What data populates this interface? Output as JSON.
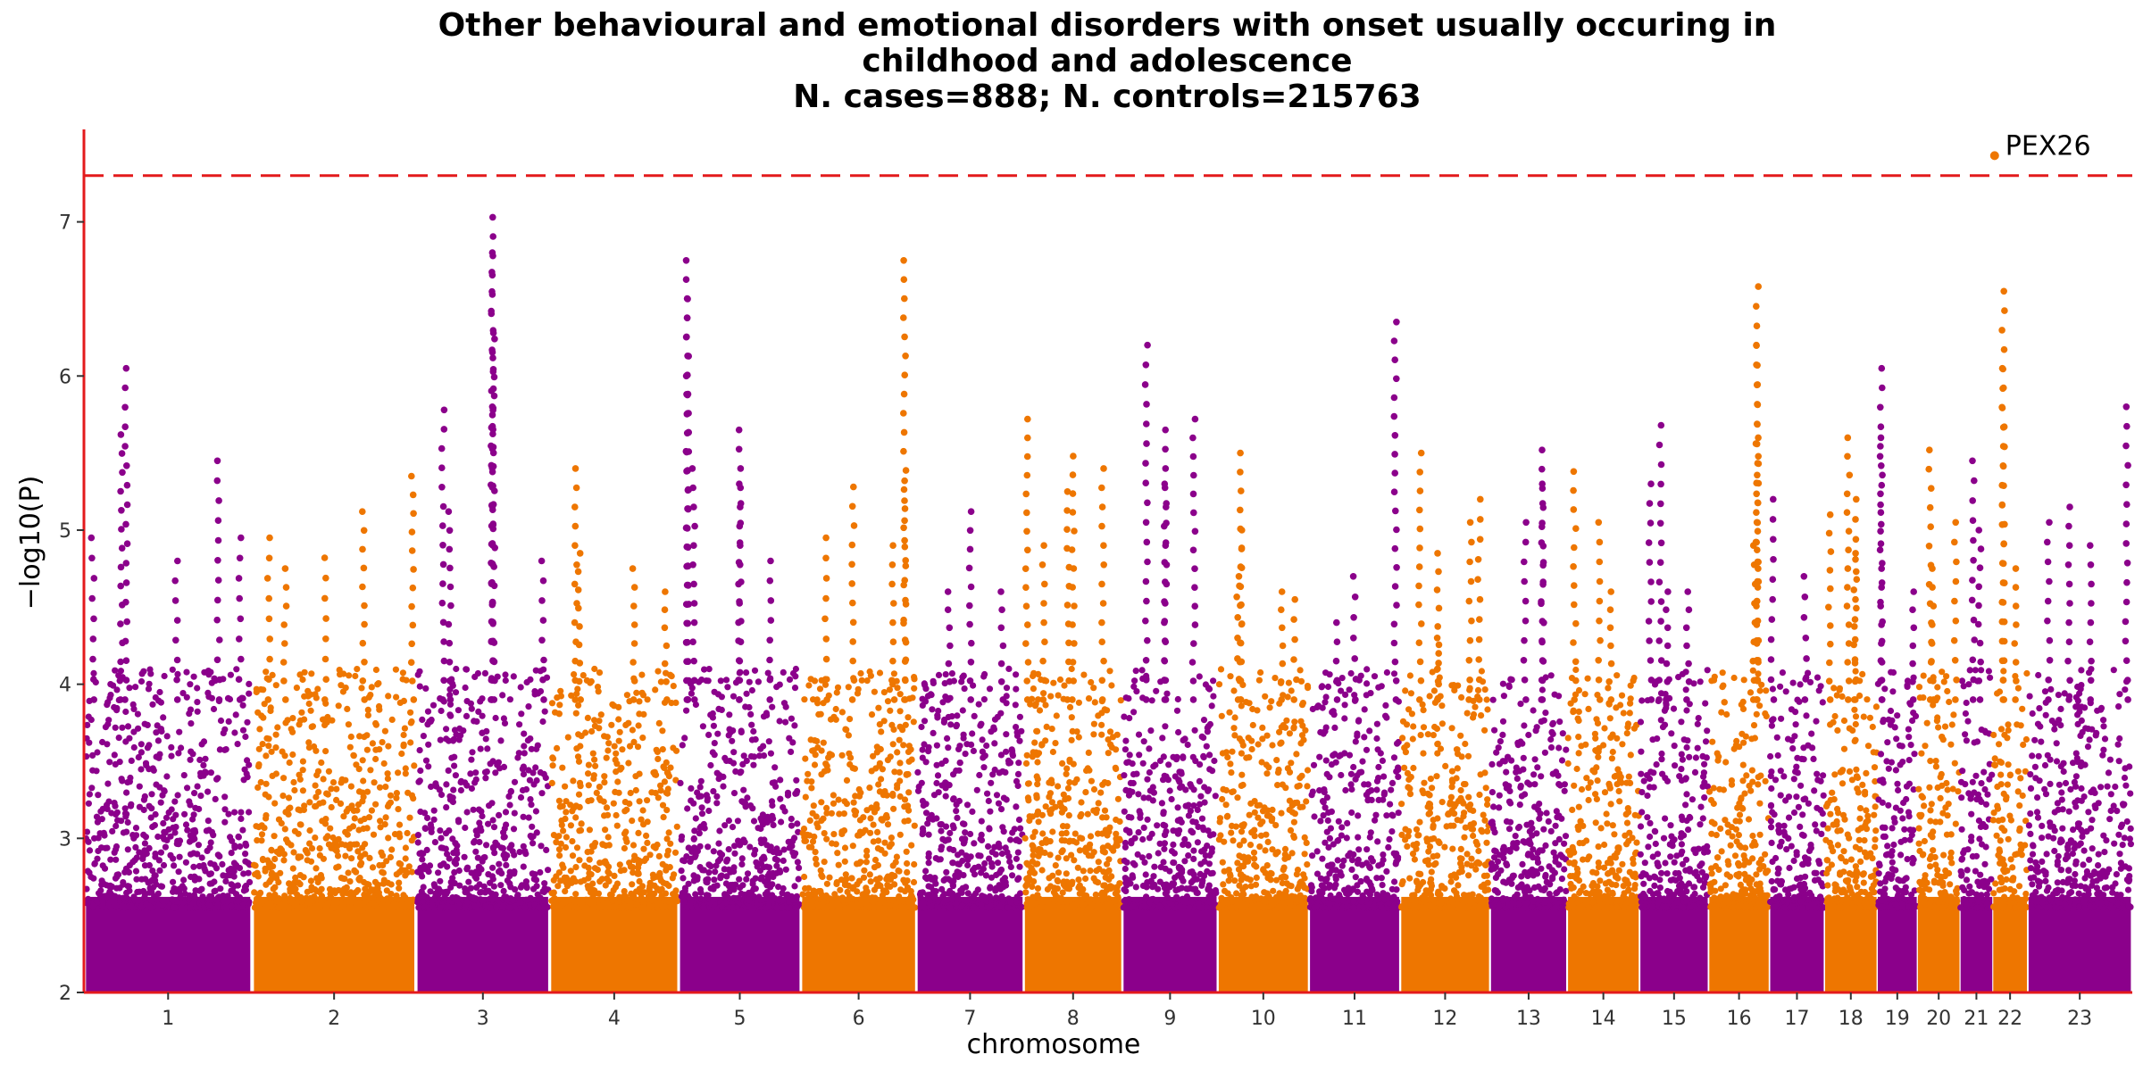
{
  "chart_data": {
    "type": "scatter",
    "subtype": "manhattan",
    "title_lines": [
      "Other behavioural and emotional disorders with onset usually occuring in",
      "childhood and adolescence",
      "N. cases=888; N. controls=215763"
    ],
    "xlabel": "chromosome",
    "ylabel": "−log10(P)",
    "ylim": [
      2,
      7.6
    ],
    "yticks": [
      "2",
      "3",
      "4",
      "5",
      "6",
      "7"
    ],
    "significance_threshold": 7.3,
    "threshold_color": "#e31a1c",
    "colors": [
      "#8b008b",
      "#ee7600"
    ],
    "chromosomes": [
      {
        "label": "1",
        "length": 249,
        "color": "#8b008b",
        "peaks": [
          [
            0.05,
            4.95
          ],
          [
            0.25,
            6.05
          ],
          [
            0.22,
            5.62
          ],
          [
            0.55,
            4.8
          ],
          [
            0.8,
            5.45
          ],
          [
            0.93,
            4.95
          ]
        ]
      },
      {
        "label": "2",
        "length": 243,
        "color": "#ee7600",
        "peaks": [
          [
            0.1,
            4.95
          ],
          [
            0.2,
            4.75
          ],
          [
            0.45,
            4.82
          ],
          [
            0.68,
            5.12
          ],
          [
            0.98,
            5.35
          ]
        ]
      },
      {
        "label": "3",
        "length": 198,
        "color": "#8b008b",
        "peaks": [
          [
            0.2,
            5.78
          ],
          [
            0.25,
            5.12
          ],
          [
            0.57,
            7.03
          ],
          [
            0.57,
            6.8
          ],
          [
            0.58,
            6.24
          ],
          [
            0.57,
            5.8
          ],
          [
            0.95,
            4.8
          ]
        ]
      },
      {
        "label": "4",
        "length": 191,
        "color": "#ee7600",
        "peaks": [
          [
            0.2,
            5.4
          ],
          [
            0.23,
            4.85
          ],
          [
            0.65,
            4.75
          ],
          [
            0.9,
            4.6
          ]
        ]
      },
      {
        "label": "5",
        "length": 181,
        "color": "#8b008b",
        "peaks": [
          [
            0.07,
            6.75
          ],
          [
            0.07,
            6.5
          ],
          [
            0.07,
            6.0
          ],
          [
            0.12,
            5.4
          ],
          [
            0.5,
            5.65
          ],
          [
            0.5,
            5.3
          ],
          [
            0.75,
            4.8
          ]
        ]
      },
      {
        "label": "6",
        "length": 171,
        "color": "#ee7600",
        "peaks": [
          [
            0.22,
            4.95
          ],
          [
            0.45,
            5.28
          ],
          [
            0.9,
            6.75
          ],
          [
            0.9,
            5.32
          ],
          [
            0.8,
            4.9
          ]
        ]
      },
      {
        "label": "7",
        "length": 159,
        "color": "#8b008b",
        "peaks": [
          [
            0.5,
            5.12
          ],
          [
            0.3,
            4.6
          ],
          [
            0.8,
            4.6
          ]
        ]
      },
      {
        "label": "8",
        "length": 146,
        "color": "#ee7600",
        "peaks": [
          [
            0.03,
            5.72
          ],
          [
            0.5,
            5.48
          ],
          [
            0.45,
            5.25
          ],
          [
            0.8,
            5.4
          ],
          [
            0.2,
            4.9
          ]
        ]
      },
      {
        "label": "9",
        "length": 141,
        "color": "#8b008b",
        "peaks": [
          [
            0.25,
            6.2
          ],
          [
            0.45,
            5.65
          ],
          [
            0.45,
            5.3
          ],
          [
            0.75,
            5.72
          ]
        ]
      },
      {
        "label": "10",
        "length": 135,
        "color": "#ee7600",
        "peaks": [
          [
            0.25,
            5.5
          ],
          [
            0.25,
            5.0
          ],
          [
            0.22,
            4.7
          ],
          [
            0.7,
            4.6
          ],
          [
            0.85,
            4.55
          ]
        ]
      },
      {
        "label": "11",
        "length": 135,
        "color": "#8b008b",
        "peaks": [
          [
            0.95,
            6.35
          ],
          [
            0.5,
            4.7
          ],
          [
            0.3,
            4.4
          ]
        ]
      },
      {
        "label": "12",
        "length": 133,
        "color": "#ee7600",
        "peaks": [
          [
            0.22,
            5.5
          ],
          [
            0.42,
            4.85
          ],
          [
            0.42,
            4.3
          ],
          [
            0.78,
            5.05
          ],
          [
            0.88,
            5.2
          ]
        ]
      },
      {
        "label": "13",
        "length": 114,
        "color": "#8b008b",
        "peaks": [
          [
            0.68,
            5.52
          ],
          [
            0.68,
            5.3
          ],
          [
            0.45,
            5.05
          ]
        ]
      },
      {
        "label": "14",
        "length": 107,
        "color": "#ee7600",
        "peaks": [
          [
            0.1,
            5.38
          ],
          [
            0.45,
            5.05
          ],
          [
            0.6,
            4.6
          ]
        ]
      },
      {
        "label": "15",
        "length": 102,
        "color": "#8b008b",
        "peaks": [
          [
            0.15,
            5.3
          ],
          [
            0.3,
            5.68
          ],
          [
            0.7,
            4.6
          ],
          [
            0.4,
            4.6
          ]
        ]
      },
      {
        "label": "16",
        "length": 90,
        "color": "#ee7600",
        "peaks": [
          [
            0.8,
            6.58
          ],
          [
            0.8,
            6.2
          ],
          [
            0.8,
            5.6
          ],
          [
            0.75,
            4.9
          ]
        ]
      },
      {
        "label": "17",
        "length": 81,
        "color": "#8b008b",
        "peaks": [
          [
            0.05,
            5.2
          ],
          [
            0.65,
            4.7
          ]
        ]
      },
      {
        "label": "18",
        "length": 78,
        "color": "#ee7600",
        "peaks": [
          [
            0.45,
            5.6
          ],
          [
            0.6,
            5.2
          ],
          [
            0.1,
            5.1
          ],
          [
            0.58,
            4.85
          ]
        ]
      },
      {
        "label": "19",
        "length": 59,
        "color": "#8b008b",
        "peaks": [
          [
            0.1,
            6.05
          ],
          [
            0.1,
            5.6
          ],
          [
            0.9,
            4.6
          ]
        ]
      },
      {
        "label": "20",
        "length": 63,
        "color": "#ee7600",
        "peaks": [
          [
            0.3,
            5.52
          ],
          [
            0.9,
            5.05
          ],
          [
            0.35,
            4.75
          ]
        ]
      },
      {
        "label": "21",
        "length": 48,
        "color": "#8b008b",
        "peaks": [
          [
            0.4,
            5.45
          ],
          [
            0.6,
            5.0
          ]
        ]
      },
      {
        "label": "22",
        "length": 51,
        "color": "#ee7600",
        "peaks": [
          [
            0.3,
            6.55
          ],
          [
            0.3,
            6.05
          ],
          [
            0.65,
            4.75
          ]
        ]
      },
      {
        "label": "23",
        "length": 155,
        "color": "#8b008b",
        "peaks": [
          [
            0.4,
            5.15
          ],
          [
            0.2,
            5.05
          ],
          [
            0.95,
            5.8
          ],
          [
            0.6,
            4.9
          ]
        ]
      }
    ],
    "annotations": [
      {
        "label": "PEX26",
        "chromosome": "22",
        "position_fraction": 0.05,
        "value": 7.43,
        "color": "#ee7600"
      }
    ],
    "grid": false,
    "legend": "none"
  }
}
